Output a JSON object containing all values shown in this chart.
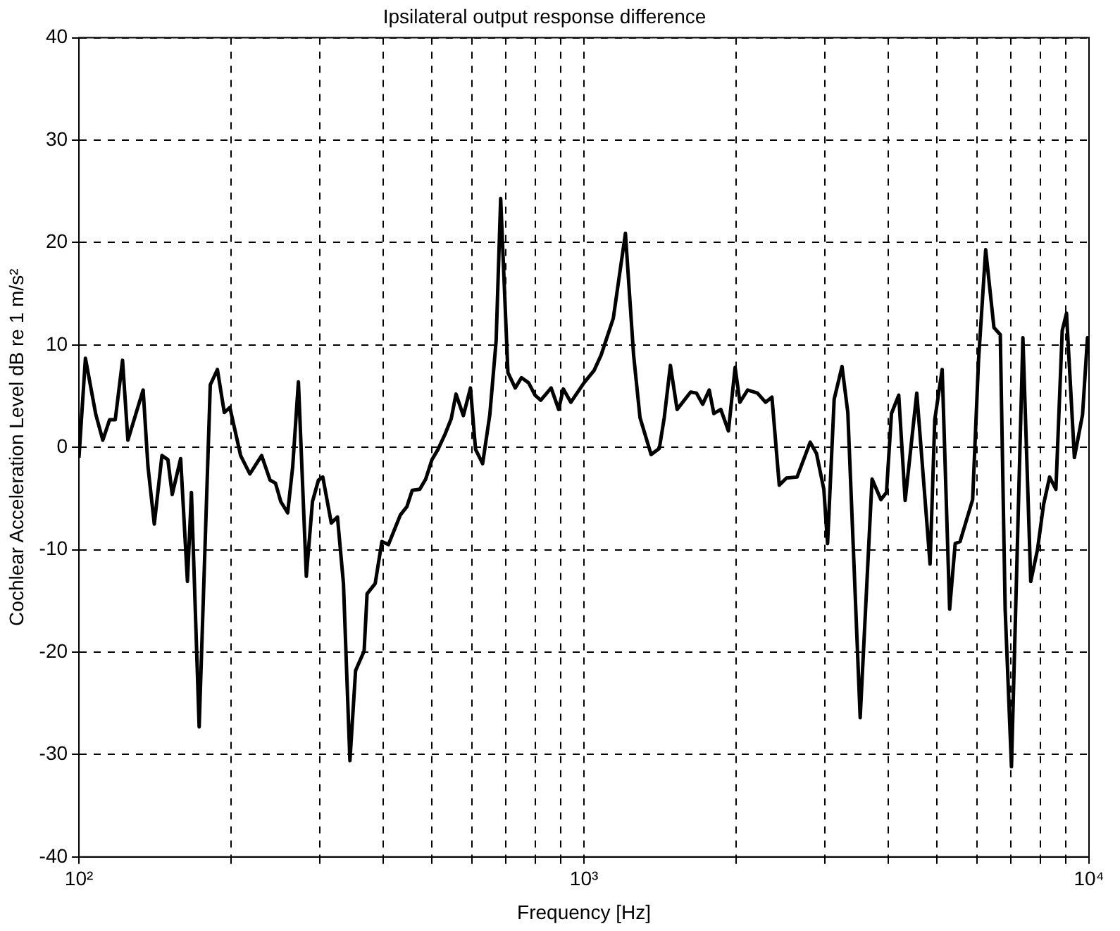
{
  "chart_data": {
    "type": "line",
    "title": "Ipsilateral output response difference",
    "xlabel": "Frequency [Hz]",
    "ylabel": "Cochlear Acceleration Level dB re 1 m/s²",
    "log": "x",
    "grid": true,
    "legend": false,
    "marker": "none",
    "line_style": "solid",
    "xlim": [
      100,
      10000
    ],
    "xticks": [
      {
        "value": 100,
        "label": "10²"
      },
      {
        "value": 200,
        "label": null
      },
      {
        "value": 300,
        "label": null
      },
      {
        "value": 400,
        "label": null
      },
      {
        "value": 500,
        "label": null
      },
      {
        "value": 600,
        "label": null
      },
      {
        "value": 700,
        "label": null
      },
      {
        "value": 800,
        "label": null
      },
      {
        "value": 900,
        "label": null
      },
      {
        "value": 1000,
        "label": "10³"
      },
      {
        "value": 2000,
        "label": null
      },
      {
        "value": 3000,
        "label": null
      },
      {
        "value": 4000,
        "label": null
      },
      {
        "value": 5000,
        "label": null
      },
      {
        "value": 6000,
        "label": null
      },
      {
        "value": 7000,
        "label": null
      },
      {
        "value": 8000,
        "label": null
      },
      {
        "value": 9000,
        "label": null
      },
      {
        "value": 10000,
        "label": "10⁴"
      }
    ],
    "ylim": [
      -40,
      40
    ],
    "yticks": [
      -40,
      -30,
      -20,
      -10,
      0,
      10,
      20,
      30,
      40
    ],
    "series": [
      {
        "color": "#000000",
        "x": [
          100,
          103,
          108,
          111.5,
          115,
          118,
          122,
          125,
          134,
          137,
          141,
          146,
          150,
          153,
          159,
          164,
          167,
          173,
          182,
          188,
          194,
          199,
          209,
          218,
          230,
          239,
          245,
          251,
          259,
          265,
          272,
          282,
          290,
          298,
          304,
          316,
          325,
          334,
          344,
          353,
          367,
          372,
          386,
          398,
          410,
          433,
          446,
          457,
          473,
          486,
          500,
          514,
          531,
          546,
          558,
          577,
          596,
          610,
          630,
          651,
          670,
          684,
          707,
          731,
          752,
          777,
          800,
          821,
          861,
          891,
          910,
          942,
          1000,
          1047,
          1081,
          1143,
          1208,
          1254,
          1291,
          1358,
          1410,
          1442,
          1483,
          1529,
          1626,
          1670,
          1718,
          1770,
          1808,
          1866,
          1932,
          1992,
          2036,
          2109,
          2205,
          2288,
          2356,
          2436,
          2518,
          2642,
          2805,
          2887,
          2985,
          3036,
          3129,
          3243,
          3330,
          3523,
          3719,
          3871,
          3972,
          4063,
          4200,
          4325,
          4560,
          4845,
          4950,
          5120,
          5297,
          5433,
          5555,
          5883,
          6043,
          6243,
          6483,
          6673,
          6823,
          7022,
          7398,
          7667,
          7907,
          8128,
          8356,
          8599,
          8851,
          9025,
          9355,
          9710,
          9930,
          10000
        ],
        "values": [
          -1,
          8.7,
          3.2,
          0.7,
          2.7,
          2.7,
          8.5,
          0.7,
          5.6,
          -1.9,
          -7.5,
          -0.8,
          -1.2,
          -4.6,
          -1.1,
          -13.1,
          -4.4,
          -27.3,
          6.1,
          7.6,
          3.4,
          3.9,
          -0.8,
          -2.6,
          -0.8,
          -3.2,
          -3.5,
          -5.3,
          -6.4,
          -1.9,
          6.4,
          -12.6,
          -5.3,
          -3.2,
          -2.9,
          -7.4,
          -6.8,
          -13.3,
          -30.6,
          -21.8,
          -19.9,
          -14.3,
          -13.3,
          -9.2,
          -9.5,
          -6.6,
          -5.8,
          -4.2,
          -4.1,
          -3.1,
          -1.2,
          -0.2,
          1.3,
          2.8,
          5.2,
          3.1,
          5.8,
          -0.2,
          -1.6,
          3.2,
          10.4,
          24.3,
          7.3,
          5.8,
          6.8,
          6.3,
          5.1,
          4.6,
          5.8,
          3.7,
          5.7,
          4.4,
          6.3,
          7.5,
          9,
          12.6,
          20.9,
          9,
          2.9,
          -0.7,
          -0.1,
          2.9,
          8,
          3.7,
          5.4,
          5.3,
          4.2,
          5.6,
          3.3,
          3.7,
          1.6,
          7.8,
          4.4,
          5.6,
          5.3,
          4.4,
          4.9,
          -3.7,
          -3,
          -2.9,
          0.5,
          -0.6,
          -4.1,
          -9.4,
          4.7,
          7.9,
          3.4,
          -26.4,
          -3.1,
          -5.1,
          -4.4,
          3.3,
          5.1,
          -5.2,
          5.3,
          -11.4,
          2.7,
          7.6,
          -15.8,
          -9.4,
          -9.2,
          -5.1,
          8.5,
          19.3,
          11.7,
          11,
          -15.8,
          -31.2,
          10.7,
          -13.1,
          -10,
          -5.6,
          -2.9,
          -4.1,
          11.4,
          13.1,
          -1,
          3.2,
          10.7,
          10.7
        ]
      }
    ]
  }
}
